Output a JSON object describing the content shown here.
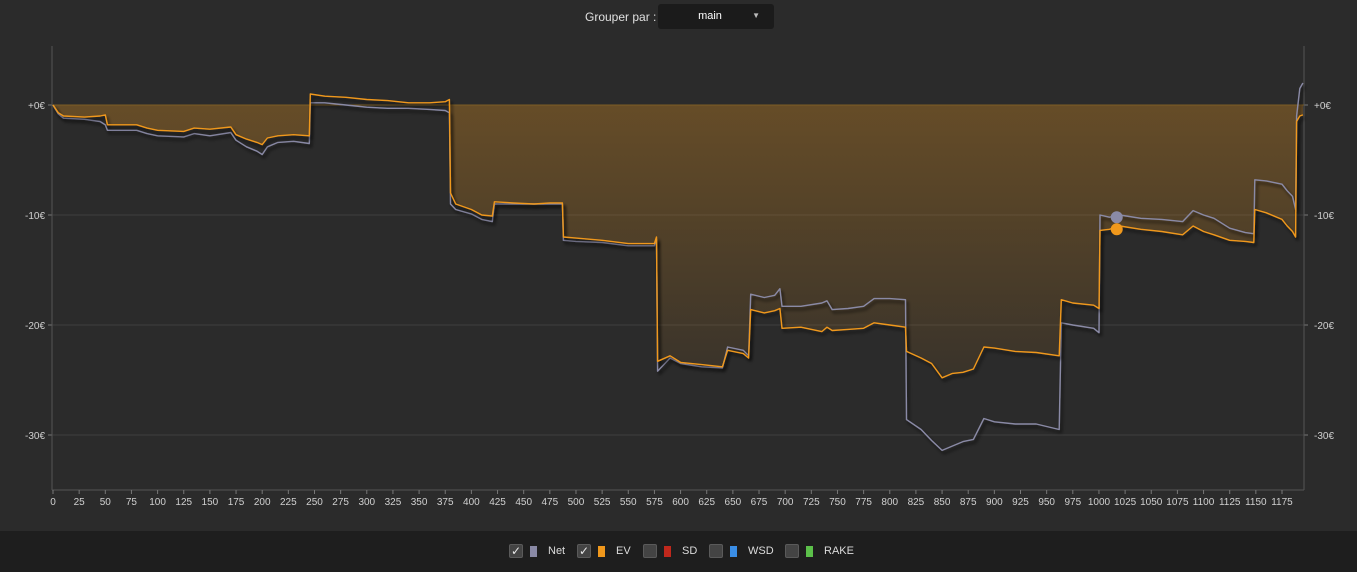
{
  "toolbar": {
    "group_label": "Grouper par :",
    "group_value": "main"
  },
  "legend": [
    {
      "label": "Net",
      "checked": true,
      "color": "#8a8aa6"
    },
    {
      "label": "EV",
      "checked": true,
      "color": "#f0981c"
    },
    {
      "label": "SD",
      "checked": false,
      "color": "#c0281c"
    },
    {
      "label": "WSD",
      "checked": false,
      "color": "#3a8ee6"
    },
    {
      "label": "RAKE",
      "checked": false,
      "color": "#5cc04a"
    }
  ],
  "chart_data": {
    "type": "line",
    "xlim": [
      0,
      1190
    ],
    "ylim": [
      -35,
      5
    ],
    "x_ticks": [
      0,
      25,
      50,
      75,
      100,
      125,
      150,
      175,
      200,
      225,
      250,
      275,
      300,
      325,
      350,
      375,
      400,
      425,
      450,
      475,
      500,
      525,
      550,
      575,
      600,
      625,
      650,
      675,
      700,
      725,
      750,
      775,
      800,
      825,
      850,
      875,
      900,
      925,
      950,
      975,
      1000,
      1025,
      1050,
      1075,
      1100,
      1125,
      1150,
      1175
    ],
    "y_ticks": [
      0,
      -10,
      -20,
      -30
    ],
    "y_tick_labels": [
      "+0€",
      "-10€",
      "-20€",
      "-30€"
    ],
    "grid": true,
    "shaded_area_series": "EV",
    "highlight_x": 1017,
    "series": [
      {
        "name": "Net",
        "color": "#8a8aa6",
        "points": [
          [
            0,
            0
          ],
          [
            5,
            -0.8
          ],
          [
            10,
            -1.2
          ],
          [
            30,
            -1.3
          ],
          [
            45,
            -1.5
          ],
          [
            50,
            -1.8
          ],
          [
            52,
            -2.3
          ],
          [
            80,
            -2.3
          ],
          [
            90,
            -2.6
          ],
          [
            100,
            -2.8
          ],
          [
            125,
            -2.9
          ],
          [
            135,
            -2.6
          ],
          [
            150,
            -2.8
          ],
          [
            170,
            -2.5
          ],
          [
            175,
            -3.2
          ],
          [
            185,
            -3.8
          ],
          [
            195,
            -4.2
          ],
          [
            200,
            -4.5
          ],
          [
            205,
            -3.8
          ],
          [
            215,
            -3.4
          ],
          [
            230,
            -3.3
          ],
          [
            245,
            -3.5
          ],
          [
            246,
            0.2
          ],
          [
            260,
            0.2
          ],
          [
            280,
            0
          ],
          [
            300,
            -0.2
          ],
          [
            320,
            -0.3
          ],
          [
            340,
            -0.3
          ],
          [
            360,
            -0.4
          ],
          [
            375,
            -0.5
          ],
          [
            379,
            -0.7
          ],
          [
            380,
            -9.0
          ],
          [
            385,
            -9.5
          ],
          [
            400,
            -9.9
          ],
          [
            410,
            -10.4
          ],
          [
            420,
            -10.6
          ],
          [
            422,
            -9.0
          ],
          [
            440,
            -9.0
          ],
          [
            460,
            -9.0
          ],
          [
            475,
            -9.0
          ],
          [
            487,
            -9.0
          ],
          [
            488,
            -12.3
          ],
          [
            500,
            -12.4
          ],
          [
            525,
            -12.5
          ],
          [
            550,
            -12.8
          ],
          [
            575,
            -12.8
          ],
          [
            577,
            -12.2
          ],
          [
            578,
            -24.2
          ],
          [
            590,
            -23.0
          ],
          [
            600,
            -23.5
          ],
          [
            620,
            -23.8
          ],
          [
            640,
            -23.9
          ],
          [
            645,
            -22.0
          ],
          [
            660,
            -22.3
          ],
          [
            665,
            -22.8
          ],
          [
            667,
            -17.2
          ],
          [
            680,
            -17.5
          ],
          [
            690,
            -17.3
          ],
          [
            695,
            -16.7
          ],
          [
            697,
            -18.3
          ],
          [
            715,
            -18.3
          ],
          [
            735,
            -18.0
          ],
          [
            740,
            -17.8
          ],
          [
            745,
            -18.6
          ],
          [
            760,
            -18.5
          ],
          [
            775,
            -18.3
          ],
          [
            785,
            -17.6
          ],
          [
            800,
            -17.6
          ],
          [
            815,
            -17.7
          ],
          [
            816,
            -28.6
          ],
          [
            830,
            -29.5
          ],
          [
            840,
            -30.5
          ],
          [
            850,
            -31.4
          ],
          [
            860,
            -31.0
          ],
          [
            870,
            -30.6
          ],
          [
            880,
            -30.4
          ],
          [
            890,
            -28.5
          ],
          [
            900,
            -28.8
          ],
          [
            920,
            -29.0
          ],
          [
            940,
            -29.0
          ],
          [
            962,
            -29.5
          ],
          [
            964,
            -19.8
          ],
          [
            975,
            -20.0
          ],
          [
            995,
            -20.3
          ],
          [
            1000,
            -20.7
          ],
          [
            1001,
            -10.0
          ],
          [
            1010,
            -10.2
          ],
          [
            1020,
            -10.0
          ],
          [
            1040,
            -10.3
          ],
          [
            1060,
            -10.4
          ],
          [
            1080,
            -10.6
          ],
          [
            1090,
            -9.6
          ],
          [
            1100,
            -10.0
          ],
          [
            1110,
            -10.3
          ],
          [
            1125,
            -11.2
          ],
          [
            1140,
            -11.6
          ],
          [
            1148,
            -11.7
          ],
          [
            1149,
            -6.8
          ],
          [
            1160,
            -6.9
          ],
          [
            1175,
            -7.2
          ],
          [
            1180,
            -7.8
          ],
          [
            1185,
            -8.3
          ],
          [
            1188,
            -9.5
          ],
          [
            1189,
            -1.0
          ],
          [
            1192,
            1.5
          ],
          [
            1195,
            2.0
          ]
        ]
      },
      {
        "name": "EV",
        "color": "#f0981c",
        "points": [
          [
            0,
            0
          ],
          [
            5,
            -0.7
          ],
          [
            10,
            -1.0
          ],
          [
            30,
            -1.1
          ],
          [
            45,
            -1.0
          ],
          [
            50,
            -0.9
          ],
          [
            52,
            -1.8
          ],
          [
            80,
            -1.8
          ],
          [
            90,
            -2.1
          ],
          [
            100,
            -2.3
          ],
          [
            125,
            -2.4
          ],
          [
            135,
            -2.1
          ],
          [
            150,
            -2.2
          ],
          [
            170,
            -2.0
          ],
          [
            175,
            -2.7
          ],
          [
            185,
            -3.1
          ],
          [
            195,
            -3.4
          ],
          [
            200,
            -3.6
          ],
          [
            205,
            -3.0
          ],
          [
            215,
            -2.8
          ],
          [
            230,
            -2.7
          ],
          [
            245,
            -2.8
          ],
          [
            246,
            1.0
          ],
          [
            260,
            0.8
          ],
          [
            280,
            0.7
          ],
          [
            300,
            0.5
          ],
          [
            320,
            0.4
          ],
          [
            340,
            0.2
          ],
          [
            360,
            0.2
          ],
          [
            375,
            0.3
          ],
          [
            379,
            0.5
          ],
          [
            380,
            -8.0
          ],
          [
            385,
            -9.0
          ],
          [
            400,
            -9.5
          ],
          [
            410,
            -10.0
          ],
          [
            420,
            -10.1
          ],
          [
            422,
            -8.8
          ],
          [
            440,
            -8.9
          ],
          [
            460,
            -9.0
          ],
          [
            475,
            -8.9
          ],
          [
            487,
            -8.9
          ],
          [
            488,
            -12.0
          ],
          [
            500,
            -12.1
          ],
          [
            525,
            -12.3
          ],
          [
            550,
            -12.6
          ],
          [
            575,
            -12.6
          ],
          [
            577,
            -12.0
          ],
          [
            578,
            -23.3
          ],
          [
            590,
            -22.8
          ],
          [
            600,
            -23.4
          ],
          [
            620,
            -23.6
          ],
          [
            640,
            -23.8
          ],
          [
            645,
            -22.3
          ],
          [
            660,
            -22.6
          ],
          [
            665,
            -23.0
          ],
          [
            667,
            -18.6
          ],
          [
            680,
            -18.9
          ],
          [
            690,
            -18.7
          ],
          [
            695,
            -18.5
          ],
          [
            697,
            -20.3
          ],
          [
            715,
            -20.2
          ],
          [
            735,
            -20.6
          ],
          [
            740,
            -20.2
          ],
          [
            745,
            -20.5
          ],
          [
            760,
            -20.4
          ],
          [
            775,
            -20.3
          ],
          [
            785,
            -19.8
          ],
          [
            800,
            -20.0
          ],
          [
            815,
            -20.2
          ],
          [
            816,
            -22.4
          ],
          [
            830,
            -23.0
          ],
          [
            840,
            -23.5
          ],
          [
            850,
            -24.8
          ],
          [
            860,
            -24.4
          ],
          [
            870,
            -24.3
          ],
          [
            880,
            -24.0
          ],
          [
            890,
            -22.0
          ],
          [
            900,
            -22.1
          ],
          [
            920,
            -22.4
          ],
          [
            940,
            -22.5
          ],
          [
            962,
            -22.8
          ],
          [
            964,
            -17.7
          ],
          [
            975,
            -18.0
          ],
          [
            995,
            -18.2
          ],
          [
            1000,
            -18.5
          ],
          [
            1001,
            -11.4
          ],
          [
            1010,
            -11.3
          ],
          [
            1020,
            -11.0
          ],
          [
            1040,
            -11.3
          ],
          [
            1060,
            -11.5
          ],
          [
            1080,
            -11.8
          ],
          [
            1090,
            -11.0
          ],
          [
            1100,
            -11.5
          ],
          [
            1110,
            -11.8
          ],
          [
            1125,
            -12.3
          ],
          [
            1140,
            -12.4
          ],
          [
            1148,
            -12.5
          ],
          [
            1149,
            -9.5
          ],
          [
            1160,
            -9.8
          ],
          [
            1175,
            -10.4
          ],
          [
            1180,
            -11.0
          ],
          [
            1185,
            -11.5
          ],
          [
            1188,
            -12.0
          ],
          [
            1189,
            -1.5
          ],
          [
            1192,
            -1.0
          ],
          [
            1195,
            -0.9
          ]
        ]
      }
    ]
  }
}
